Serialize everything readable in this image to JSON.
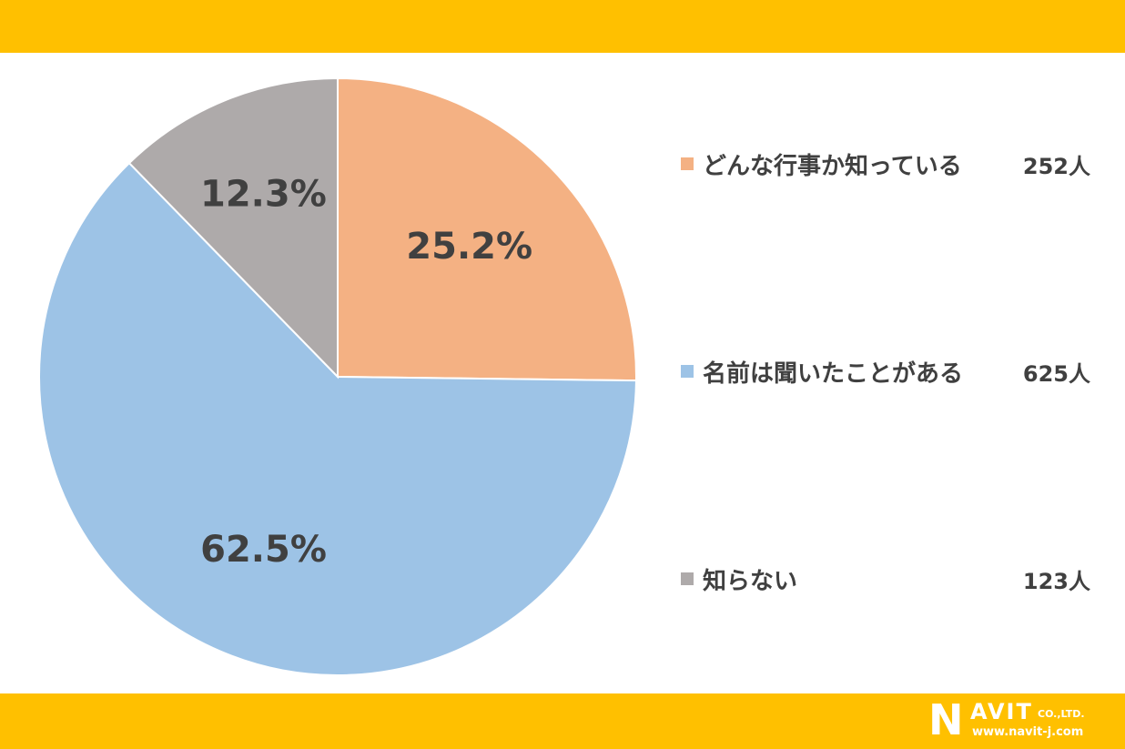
{
  "chart_data": {
    "type": "pie",
    "categories": [
      "どんな行事か知っている",
      "名前は聞いたことがある",
      "知らない"
    ],
    "values": [
      252,
      625,
      123
    ],
    "unit": "人",
    "percent_labels": [
      "25.2%",
      "62.5%",
      "12.3%"
    ],
    "colors": [
      "#F4B183",
      "#9DC3E6",
      "#AEAAAA"
    ],
    "legend_placement": "right"
  },
  "legend": [
    {
      "label": "どんな行事か知っている",
      "count": "252人",
      "color": "#F4B183"
    },
    {
      "label": "名前は聞いたことがある",
      "count": "625人",
      "color": "#9DC3E6"
    },
    {
      "label": "知らない",
      "count": "123人",
      "color": "#AEAAAA"
    }
  ],
  "logo": {
    "brand_initial": "N",
    "brand_rest": "AVIT",
    "suffix": "CO.,LTD.",
    "url": "www.navit-j.com"
  },
  "colors": {
    "band": "#FFC000",
    "label_text": "#404040"
  }
}
